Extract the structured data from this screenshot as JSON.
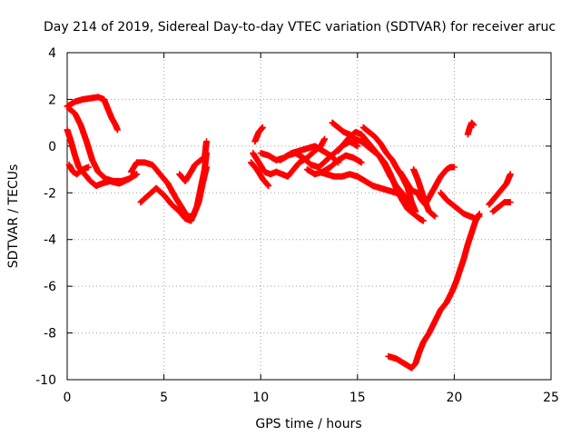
{
  "chart_data": {
    "type": "scatter",
    "title": "Day 214 of 2019, Sidereal Day-to-day VTEC variation (SDTVAR) for receiver aruc",
    "xlabel": "GPS time / hours",
    "ylabel": "SDTVAR / TECUs",
    "xlim": [
      0,
      25
    ],
    "ylim": [
      -10,
      4
    ],
    "xticks": [
      "0",
      "5",
      "10",
      "15",
      "20",
      "25"
    ],
    "yticks": [
      "4",
      "2",
      "0",
      "-2",
      "-4",
      "-6",
      "-8",
      "-10"
    ],
    "grid": true,
    "marker": "plus",
    "series_color": "#ff0000",
    "tracks": [
      {
        "name": "t1",
        "points": [
          [
            0.0,
            1.7
          ],
          [
            0.4,
            1.9
          ],
          [
            0.8,
            2.0
          ],
          [
            1.2,
            2.05
          ],
          [
            1.6,
            2.1
          ],
          [
            1.9,
            2.0
          ],
          [
            2.1,
            1.6
          ],
          [
            2.3,
            1.2
          ],
          [
            2.5,
            0.9
          ],
          [
            2.6,
            0.7
          ]
        ]
      },
      {
        "name": "t2",
        "points": [
          [
            0.1,
            1.6
          ],
          [
            0.4,
            1.4
          ],
          [
            0.7,
            0.9
          ],
          [
            1.0,
            0.2
          ],
          [
            1.3,
            -0.6
          ],
          [
            1.6,
            -1.1
          ],
          [
            2.0,
            -1.4
          ],
          [
            2.4,
            -1.5
          ],
          [
            2.8,
            -1.5
          ],
          [
            3.2,
            -1.4
          ],
          [
            3.6,
            -1.2
          ]
        ]
      },
      {
        "name": "t3",
        "points": [
          [
            0.0,
            0.7
          ],
          [
            0.2,
            0.2
          ],
          [
            0.4,
            -0.4
          ],
          [
            0.6,
            -0.9
          ],
          [
            0.9,
            -1.2
          ],
          [
            1.2,
            -1.5
          ],
          [
            1.5,
            -1.7
          ],
          [
            1.8,
            -1.6
          ],
          [
            2.2,
            -1.5
          ],
          [
            2.7,
            -1.6
          ],
          [
            3.2,
            -1.4
          ],
          [
            3.5,
            -1.2
          ]
        ]
      },
      {
        "name": "t4",
        "points": [
          [
            0.1,
            -0.8
          ],
          [
            0.3,
            -1.1
          ],
          [
            0.5,
            -1.2
          ],
          [
            0.8,
            -1.0
          ],
          [
            1.1,
            -0.9
          ]
        ]
      },
      {
        "name": "t5",
        "points": [
          [
            3.3,
            -1.1
          ],
          [
            3.6,
            -0.7
          ],
          [
            4.0,
            -0.7
          ],
          [
            4.4,
            -0.8
          ],
          [
            4.8,
            -1.2
          ],
          [
            5.2,
            -1.6
          ],
          [
            5.6,
            -2.2
          ],
          [
            5.9,
            -2.6
          ],
          [
            6.2,
            -3.0
          ],
          [
            6.5,
            -3.0
          ],
          [
            6.8,
            -2.4
          ],
          [
            7.0,
            -1.6
          ],
          [
            7.2,
            -0.9
          ]
        ]
      },
      {
        "name": "t6",
        "points": [
          [
            3.8,
            -2.4
          ],
          [
            4.2,
            -2.1
          ],
          [
            4.6,
            -1.8
          ],
          [
            5.0,
            -2.1
          ],
          [
            5.4,
            -2.5
          ],
          [
            5.8,
            -2.8
          ],
          [
            6.1,
            -3.1
          ],
          [
            6.4,
            -3.2
          ],
          [
            6.7,
            -2.6
          ],
          [
            6.9,
            -1.8
          ],
          [
            7.1,
            -1.0
          ],
          [
            7.2,
            -0.3
          ]
        ]
      },
      {
        "name": "t7",
        "points": [
          [
            5.8,
            -1.2
          ],
          [
            6.1,
            -1.5
          ],
          [
            6.4,
            -1.1
          ],
          [
            6.6,
            -0.8
          ],
          [
            6.9,
            -0.6
          ],
          [
            7.1,
            -0.5
          ],
          [
            7.2,
            0.2
          ]
        ]
      },
      {
        "name": "t8",
        "points": [
          [
            9.7,
            0.2
          ],
          [
            9.9,
            0.6
          ],
          [
            10.1,
            0.8
          ]
        ]
      },
      {
        "name": "t9",
        "points": [
          [
            9.6,
            -0.3
          ],
          [
            9.9,
            -0.7
          ],
          [
            10.2,
            -1.1
          ],
          [
            10.5,
            -1.2
          ],
          [
            10.8,
            -1.1
          ],
          [
            11.1,
            -1.2
          ],
          [
            11.4,
            -1.3
          ],
          [
            11.7,
            -1.0
          ],
          [
            12.0,
            -0.7
          ],
          [
            12.4,
            -0.5
          ],
          [
            12.8,
            -0.2
          ],
          [
            13.1,
            0.0
          ],
          [
            13.3,
            0.3
          ]
        ]
      },
      {
        "name": "t10",
        "points": [
          [
            9.5,
            -0.7
          ],
          [
            9.8,
            -1.0
          ],
          [
            10.1,
            -1.4
          ],
          [
            10.4,
            -1.7
          ]
        ]
      },
      {
        "name": "t11",
        "points": [
          [
            10.0,
            -0.3
          ],
          [
            10.4,
            -0.4
          ],
          [
            10.8,
            -0.6
          ],
          [
            11.2,
            -0.5
          ],
          [
            11.6,
            -0.3
          ],
          [
            12.0,
            -0.2
          ],
          [
            12.4,
            -0.1
          ],
          [
            12.8,
            0.0
          ],
          [
            13.2,
            -0.2
          ],
          [
            13.6,
            -0.4
          ],
          [
            14.0,
            -0.7
          ]
        ]
      },
      {
        "name": "t12",
        "points": [
          [
            11.0,
            -0.6
          ],
          [
            11.4,
            -0.4
          ],
          [
            11.8,
            -0.3
          ],
          [
            12.2,
            -0.5
          ],
          [
            12.6,
            -0.8
          ],
          [
            13.0,
            -0.9
          ],
          [
            13.4,
            -0.6
          ],
          [
            13.8,
            -0.3
          ],
          [
            14.2,
            0.0
          ],
          [
            14.6,
            0.2
          ],
          [
            15.0,
            0.0
          ]
        ]
      },
      {
        "name": "t13",
        "points": [
          [
            12.4,
            -1.0
          ],
          [
            12.8,
            -1.2
          ],
          [
            13.2,
            -1.1
          ],
          [
            13.6,
            -0.9
          ],
          [
            14.0,
            -0.6
          ],
          [
            14.4,
            -0.4
          ],
          [
            14.8,
            -0.5
          ],
          [
            15.2,
            -0.7
          ]
        ]
      },
      {
        "name": "t14",
        "points": [
          [
            13.0,
            -1.1
          ],
          [
            13.4,
            -1.2
          ],
          [
            13.8,
            -1.3
          ],
          [
            14.2,
            -1.3
          ],
          [
            14.6,
            -1.2
          ],
          [
            15.0,
            -1.3
          ],
          [
            15.4,
            -1.5
          ],
          [
            15.8,
            -1.7
          ],
          [
            16.2,
            -1.8
          ],
          [
            16.6,
            -1.9
          ],
          [
            17.0,
            -2.0
          ],
          [
            17.4,
            -2.2
          ]
        ]
      },
      {
        "name": "t15",
        "points": [
          [
            13.7,
            1.0
          ],
          [
            14.0,
            0.8
          ],
          [
            14.3,
            0.6
          ],
          [
            14.6,
            0.5
          ],
          [
            14.9,
            0.3
          ],
          [
            15.2,
            0.2
          ],
          [
            15.5,
            0.0
          ],
          [
            15.8,
            -0.2
          ],
          [
            16.1,
            -0.4
          ],
          [
            16.4,
            -0.7
          ],
          [
            16.7,
            -1.2
          ],
          [
            17.0,
            -1.8
          ],
          [
            17.3,
            -2.3
          ],
          [
            17.6,
            -2.7
          ],
          [
            17.9,
            -2.9
          ],
          [
            18.2,
            -3.1
          ],
          [
            18.4,
            -3.2
          ]
        ]
      },
      {
        "name": "t16",
        "points": [
          [
            14.0,
            -0.2
          ],
          [
            14.3,
            0.1
          ],
          [
            14.6,
            0.4
          ],
          [
            14.9,
            0.6
          ],
          [
            15.2,
            0.5
          ],
          [
            15.5,
            0.2
          ],
          [
            15.8,
            -0.1
          ],
          [
            16.1,
            -0.4
          ],
          [
            16.4,
            -0.8
          ],
          [
            16.7,
            -1.3
          ],
          [
            17.0,
            -1.7
          ],
          [
            17.3,
            -2.0
          ],
          [
            17.6,
            -2.4
          ],
          [
            17.9,
            -2.7
          ]
        ]
      },
      {
        "name": "t17",
        "points": [
          [
            15.3,
            0.8
          ],
          [
            15.6,
            0.6
          ],
          [
            15.9,
            0.4
          ],
          [
            16.2,
            0.1
          ],
          [
            16.5,
            -0.3
          ],
          [
            16.8,
            -0.6
          ],
          [
            17.0,
            -0.9
          ],
          [
            17.3,
            -1.3
          ],
          [
            17.6,
            -1.8
          ],
          [
            17.8,
            -2.4
          ],
          [
            18.0,
            -2.8
          ]
        ]
      },
      {
        "name": "t18",
        "points": [
          [
            17.2,
            -1.1
          ],
          [
            17.5,
            -1.5
          ],
          [
            17.8,
            -1.9
          ],
          [
            18.1,
            -2.0
          ],
          [
            18.3,
            -2.3
          ],
          [
            18.5,
            -2.5
          ],
          [
            18.7,
            -2.2
          ],
          [
            18.9,
            -1.9
          ],
          [
            19.1,
            -1.6
          ],
          [
            19.3,
            -1.3
          ],
          [
            19.6,
            -1.0
          ],
          [
            19.8,
            -0.9
          ],
          [
            20.0,
            -0.9
          ]
        ]
      },
      {
        "name": "t19",
        "points": [
          [
            17.9,
            -1.0
          ],
          [
            18.1,
            -1.4
          ],
          [
            18.3,
            -1.9
          ],
          [
            18.5,
            -2.4
          ],
          [
            18.7,
            -2.8
          ],
          [
            19.0,
            -3.0
          ]
        ]
      },
      {
        "name": "t20",
        "points": [
          [
            19.3,
            -2.0
          ],
          [
            19.6,
            -2.3
          ],
          [
            19.9,
            -2.5
          ],
          [
            20.2,
            -2.7
          ],
          [
            20.5,
            -2.9
          ],
          [
            20.8,
            -3.0
          ],
          [
            21.1,
            -3.1
          ],
          [
            21.3,
            -3.0
          ]
        ]
      },
      {
        "name": "t21",
        "points": [
          [
            16.6,
            -9.0
          ],
          [
            17.0,
            -9.1
          ],
          [
            17.4,
            -9.3
          ],
          [
            17.8,
            -9.5
          ],
          [
            18.0,
            -9.3
          ],
          [
            18.2,
            -8.8
          ],
          [
            18.4,
            -8.4
          ],
          [
            18.7,
            -8.0
          ],
          [
            19.0,
            -7.5
          ],
          [
            19.3,
            -7.0
          ],
          [
            19.6,
            -6.7
          ],
          [
            19.9,
            -6.2
          ],
          [
            20.1,
            -5.8
          ],
          [
            20.3,
            -5.3
          ],
          [
            20.5,
            -4.8
          ],
          [
            20.7,
            -4.2
          ],
          [
            20.9,
            -3.7
          ],
          [
            21.1,
            -3.2
          ],
          [
            21.3,
            -2.9
          ]
        ]
      },
      {
        "name": "t22",
        "points": [
          [
            20.7,
            0.5
          ],
          [
            20.8,
            0.8
          ],
          [
            20.9,
            1.0
          ],
          [
            21.0,
            0.9
          ]
        ]
      },
      {
        "name": "t23",
        "points": [
          [
            21.8,
            -2.5
          ],
          [
            22.1,
            -2.2
          ],
          [
            22.4,
            -1.9
          ],
          [
            22.7,
            -1.6
          ],
          [
            22.9,
            -1.2
          ]
        ]
      },
      {
        "name": "t24",
        "points": [
          [
            22.0,
            -2.8
          ],
          [
            22.3,
            -2.6
          ],
          [
            22.6,
            -2.4
          ],
          [
            22.9,
            -2.4
          ]
        ]
      }
    ]
  }
}
